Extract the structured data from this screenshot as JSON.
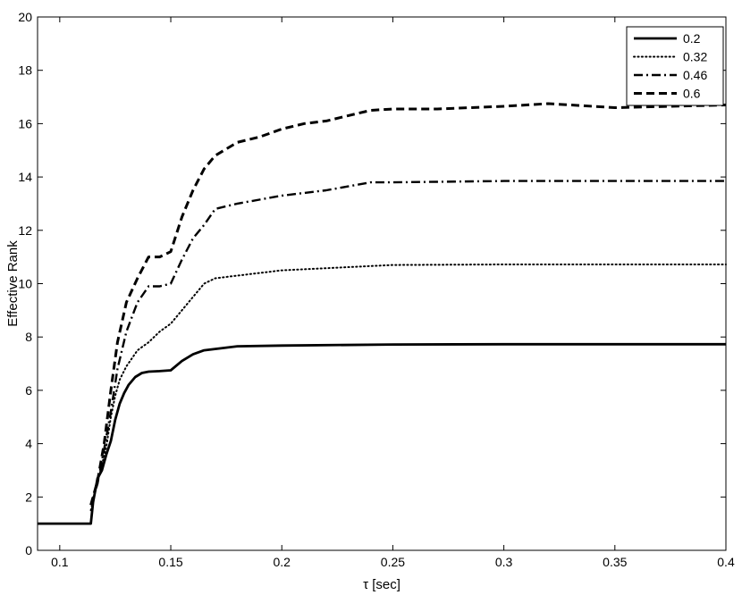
{
  "colors": {
    "axes": "#000000",
    "lines": "#000000",
    "background": "#ffffff"
  },
  "chart_data": {
    "type": "line",
    "title": "",
    "xlabel": "τ [sec]",
    "ylabel": "Effective Rank",
    "xlim": [
      0.09,
      0.4
    ],
    "ylim": [
      0,
      20
    ],
    "xticks": [
      0.1,
      0.15,
      0.2,
      0.25,
      0.3,
      0.35,
      0.4
    ],
    "xtick_labels": [
      "0.1",
      "0.15",
      "0.2",
      "0.25",
      "0.3",
      "0.35",
      "0.4"
    ],
    "yticks": [
      0,
      2,
      4,
      6,
      8,
      10,
      12,
      14,
      16,
      18,
      20
    ],
    "ytick_labels": [
      "0",
      "2",
      "4",
      "6",
      "8",
      "10",
      "12",
      "14",
      "16",
      "18",
      "20"
    ],
    "grid": false,
    "legend_position": "top-right",
    "series": [
      {
        "name": "0.2",
        "style": "solid",
        "x": [
          0.09,
          0.114,
          0.115,
          0.117,
          0.119,
          0.121,
          0.123,
          0.125,
          0.127,
          0.129,
          0.131,
          0.134,
          0.137,
          0.14,
          0.145,
          0.15,
          0.155,
          0.16,
          0.165,
          0.17,
          0.175,
          0.18,
          0.2,
          0.25,
          0.3,
          0.35,
          0.4
        ],
        "y": [
          1,
          1,
          1.8,
          2.7,
          3.0,
          3.6,
          4.1,
          4.9,
          5.5,
          5.9,
          6.2,
          6.5,
          6.65,
          6.7,
          6.72,
          6.75,
          7.1,
          7.35,
          7.5,
          7.55,
          7.6,
          7.65,
          7.68,
          7.72,
          7.73,
          7.73,
          7.73
        ]
      },
      {
        "name": "0.32",
        "style": "dotted",
        "x": [
          0.114,
          0.116,
          0.119,
          0.121,
          0.123,
          0.125,
          0.127,
          0.13,
          0.135,
          0.14,
          0.145,
          0.15,
          0.155,
          0.16,
          0.165,
          0.17,
          0.18,
          0.2,
          0.25,
          0.3,
          0.35,
          0.4
        ],
        "y": [
          1.5,
          2.2,
          3.2,
          3.9,
          5.0,
          5.8,
          6.4,
          6.9,
          7.5,
          7.8,
          8.2,
          8.5,
          9.0,
          9.5,
          10.0,
          10.2,
          10.3,
          10.5,
          10.7,
          10.72,
          10.72,
          10.72
        ]
      },
      {
        "name": "0.46",
        "style": "dashdot",
        "x": [
          0.114,
          0.117,
          0.12,
          0.123,
          0.126,
          0.13,
          0.135,
          0.14,
          0.145,
          0.15,
          0.155,
          0.16,
          0.165,
          0.17,
          0.175,
          0.18,
          0.2,
          0.22,
          0.24,
          0.25,
          0.3,
          0.35,
          0.4
        ],
        "y": [
          1.7,
          2.5,
          3.8,
          5.2,
          6.8,
          8.2,
          9.3,
          9.9,
          9.9,
          10.0,
          10.9,
          11.7,
          12.2,
          12.8,
          12.9,
          13.0,
          13.3,
          13.5,
          13.8,
          13.8,
          13.85,
          13.85,
          13.85
        ]
      },
      {
        "name": "0.6",
        "style": "dashed",
        "x": [
          0.114,
          0.117,
          0.12,
          0.123,
          0.126,
          0.13,
          0.135,
          0.14,
          0.145,
          0.15,
          0.155,
          0.16,
          0.165,
          0.17,
          0.18,
          0.19,
          0.2,
          0.21,
          0.22,
          0.23,
          0.24,
          0.25,
          0.27,
          0.3,
          0.32,
          0.35,
          0.4
        ],
        "y": [
          1.7,
          2.6,
          4.0,
          6.0,
          7.8,
          9.3,
          10.2,
          11.0,
          11.0,
          11.2,
          12.5,
          13.5,
          14.3,
          14.8,
          15.3,
          15.5,
          15.8,
          16.0,
          16.1,
          16.3,
          16.5,
          16.55,
          16.55,
          16.65,
          16.75,
          16.6,
          16.7
        ]
      }
    ]
  }
}
